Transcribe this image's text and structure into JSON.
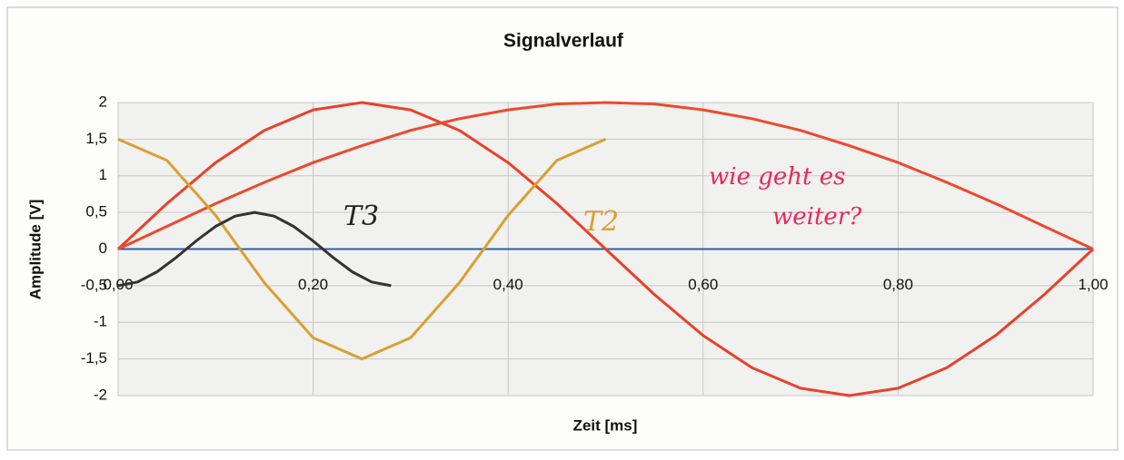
{
  "chart_data": {
    "type": "line",
    "title": "Signalverlauf",
    "xlabel": "Zeit [ms]",
    "ylabel": "Amplitude [V]",
    "xlim": [
      0,
      1
    ],
    "ylim": [
      -2,
      2
    ],
    "xticks": [
      {
        "value": 0,
        "label": "0,00"
      },
      {
        "value": 0.2,
        "label": "0,20"
      },
      {
        "value": 0.4,
        "label": "0,40"
      },
      {
        "value": 0.6,
        "label": "0,60"
      },
      {
        "value": 0.8,
        "label": "0,80"
      },
      {
        "value": 1,
        "label": "1,00"
      }
    ],
    "yticks": [
      2,
      {
        "value": 1.5,
        "label": "1,5"
      },
      1,
      {
        "value": 0.5,
        "label": "0,5"
      },
      0,
      {
        "value": -0.5,
        "label": "-0,5"
      },
      -1,
      {
        "value": -1.5,
        "label": "-1,5"
      },
      -2
    ],
    "grid": true,
    "series": [
      {
        "color": "#e8412a",
        "x": [
          0,
          0.05,
          0.1,
          0.15,
          0.2,
          0.25,
          0.3,
          0.35,
          0.4,
          0.45,
          0.5,
          0.55,
          0.6,
          0.65,
          0.7,
          0.75,
          0.8,
          0.85,
          0.9,
          0.95,
          1
        ],
        "values": [
          0,
          0.62,
          1.18,
          1.62,
          1.9,
          2,
          1.9,
          1.62,
          1.18,
          0.62,
          0,
          -0.62,
          -1.18,
          -1.62,
          -1.9,
          -2,
          -1.9,
          -1.62,
          -1.18,
          -0.62,
          0
        ]
      },
      {
        "color": "#ec4a2c",
        "x": [
          0,
          0.05,
          0.1,
          0.15,
          0.2,
          0.25,
          0.3,
          0.35,
          0.4,
          0.45,
          0.5,
          0.55,
          0.6,
          0.65,
          0.7,
          0.75,
          0.8,
          0.85,
          0.9,
          0.95,
          1
        ],
        "values": [
          0,
          0.31,
          0.62,
          0.91,
          1.18,
          1.41,
          1.62,
          1.78,
          1.9,
          1.98,
          2,
          1.98,
          1.9,
          1.78,
          1.62,
          1.41,
          1.18,
          0.91,
          0.62,
          0.31,
          0
        ]
      },
      {
        "color": "#d9a030",
        "x": [
          0,
          0.05,
          0.1,
          0.15,
          0.2,
          0.25,
          0.3,
          0.35,
          0.4,
          0.45,
          0.5
        ],
        "values": [
          1.5,
          1.21,
          0.46,
          -0.46,
          -1.21,
          -1.5,
          -1.21,
          -0.46,
          0.46,
          1.21,
          1.5
        ]
      },
      {
        "color": "#333333",
        "x": [
          0,
          0.02,
          0.04,
          0.06,
          0.08,
          0.1,
          0.12,
          0.14,
          0.16,
          0.18,
          0.2,
          0.22,
          0.24,
          0.26,
          0.28
        ],
        "values": [
          -0.5,
          -0.45,
          -0.31,
          -0.11,
          0.11,
          0.31,
          0.45,
          0.5,
          0.45,
          0.31,
          0.11,
          -0.11,
          -0.31,
          -0.45,
          -0.5
        ]
      }
    ],
    "annotations": [
      "T3",
      "T2",
      "wie geht es",
      "weiter?"
    ]
  }
}
